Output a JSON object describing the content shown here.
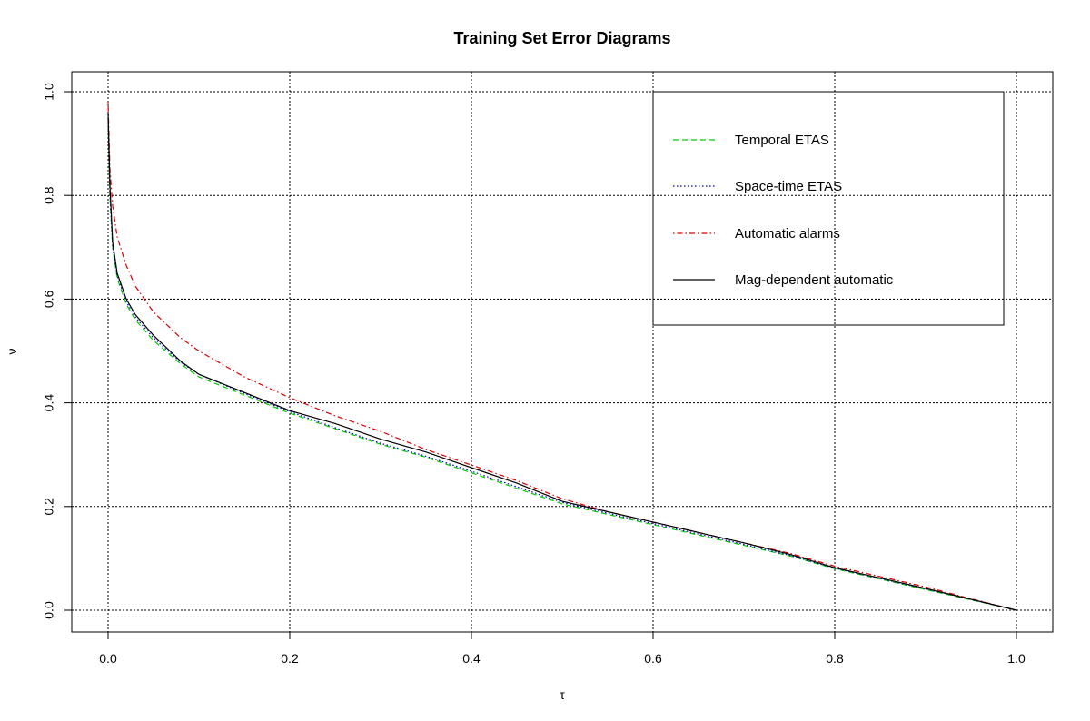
{
  "chart_data": {
    "type": "line",
    "title": "Training Set Error Diagrams",
    "xlabel": "τ",
    "ylabel": "ν",
    "xlim": [
      0,
      1
    ],
    "ylim": [
      0,
      1
    ],
    "xticks": [
      "0.0",
      "0.2",
      "0.4",
      "0.6",
      "0.8",
      "1.0"
    ],
    "yticks": [
      "0.0",
      "0.2",
      "0.4",
      "0.6",
      "0.8",
      "1.0"
    ],
    "grid": true,
    "legend_position": "top-right",
    "series": [
      {
        "name": "Temporal ETAS",
        "color": "#00cc00",
        "dash": "dashed",
        "x": [
          0,
          0.002,
          0.005,
          0.01,
          0.02,
          0.03,
          0.05,
          0.08,
          0.1,
          0.15,
          0.2,
          0.25,
          0.3,
          0.35,
          0.4,
          0.45,
          0.5,
          0.55,
          0.6,
          0.65,
          0.7,
          0.75,
          0.8,
          0.85,
          0.9,
          0.95,
          1.0
        ],
        "y": [
          0.95,
          0.8,
          0.7,
          0.64,
          0.59,
          0.56,
          0.52,
          0.475,
          0.45,
          0.415,
          0.38,
          0.35,
          0.32,
          0.295,
          0.265,
          0.235,
          0.205,
          0.185,
          0.165,
          0.145,
          0.125,
          0.105,
          0.08,
          0.06,
          0.04,
          0.02,
          0.0
        ]
      },
      {
        "name": "Space-time ETAS",
        "color": "#0000cc",
        "dash": "dotted",
        "x": [
          0,
          0.002,
          0.005,
          0.01,
          0.02,
          0.03,
          0.05,
          0.08,
          0.1,
          0.15,
          0.2,
          0.25,
          0.3,
          0.35,
          0.4,
          0.45,
          0.5,
          0.55,
          0.6,
          0.65,
          0.7,
          0.75,
          0.8,
          0.85,
          0.9,
          0.95,
          1.0
        ],
        "y": [
          0.95,
          0.8,
          0.7,
          0.645,
          0.595,
          0.565,
          0.525,
          0.478,
          0.455,
          0.418,
          0.383,
          0.352,
          0.322,
          0.297,
          0.268,
          0.238,
          0.208,
          0.187,
          0.167,
          0.147,
          0.127,
          0.106,
          0.081,
          0.061,
          0.041,
          0.021,
          0.0
        ]
      },
      {
        "name": "Automatic alarms",
        "color": "#dd0000",
        "dash": "dotdash",
        "x": [
          0,
          0.002,
          0.005,
          0.01,
          0.02,
          0.03,
          0.05,
          0.08,
          0.1,
          0.15,
          0.2,
          0.25,
          0.3,
          0.35,
          0.4,
          0.45,
          0.5,
          0.55,
          0.6,
          0.65,
          0.7,
          0.75,
          0.8,
          0.85,
          0.9,
          0.95,
          1.0
        ],
        "y": [
          0.98,
          0.85,
          0.78,
          0.72,
          0.665,
          0.625,
          0.575,
          0.525,
          0.5,
          0.45,
          0.41,
          0.375,
          0.345,
          0.31,
          0.28,
          0.25,
          0.215,
          0.19,
          0.17,
          0.15,
          0.13,
          0.11,
          0.085,
          0.065,
          0.045,
          0.022,
          0.0
        ]
      },
      {
        "name": "Mag-dependent automatic",
        "color": "#000000",
        "dash": "solid",
        "x": [
          0,
          0.002,
          0.005,
          0.01,
          0.02,
          0.03,
          0.05,
          0.08,
          0.1,
          0.15,
          0.2,
          0.25,
          0.3,
          0.35,
          0.4,
          0.45,
          0.5,
          0.55,
          0.6,
          0.65,
          0.7,
          0.75,
          0.8,
          0.85,
          0.9,
          0.95,
          1.0
        ],
        "y": [
          0.96,
          0.82,
          0.71,
          0.65,
          0.6,
          0.57,
          0.53,
          0.48,
          0.455,
          0.42,
          0.385,
          0.36,
          0.33,
          0.305,
          0.275,
          0.245,
          0.21,
          0.19,
          0.17,
          0.15,
          0.13,
          0.108,
          0.082,
          0.062,
          0.042,
          0.021,
          0.0
        ]
      }
    ]
  }
}
